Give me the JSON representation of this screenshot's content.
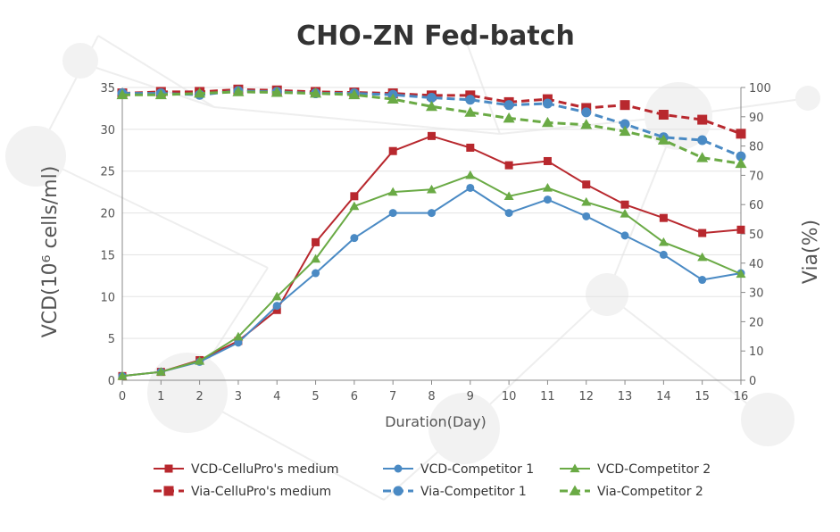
{
  "chart_data": {
    "type": "line",
    "title": "CHO-ZN Fed-batch",
    "xlabel": "Duration(Day)",
    "ylabel_left": "VCD(10⁶ cells/ml)",
    "ylabel_right": "Via(%)",
    "x": [
      0,
      1,
      2,
      3,
      4,
      5,
      6,
      7,
      8,
      9,
      10,
      11,
      12,
      13,
      14,
      15,
      16
    ],
    "ylim_left": [
      0,
      35
    ],
    "ylim_right": [
      0,
      100
    ],
    "left_ticks": [
      0,
      5,
      10,
      15,
      20,
      25,
      30,
      35
    ],
    "right_ticks": [
      0,
      10,
      20,
      30,
      40,
      50,
      60,
      70,
      80,
      90,
      100
    ],
    "legend_position": "bottom",
    "series": [
      {
        "name": "VCD-CelluPro's medium",
        "axis": "left",
        "color": "#b8282e",
        "marker": "square",
        "dashed": false,
        "values": [
          0.5,
          1.0,
          2.4,
          4.7,
          8.4,
          16.5,
          22.0,
          27.4,
          29.2,
          27.8,
          25.7,
          26.2,
          23.4,
          21.0,
          19.4,
          17.6,
          18.0
        ]
      },
      {
        "name": "VCD-Competitor 1",
        "axis": "left",
        "color": "#4a8ac4",
        "marker": "circle",
        "dashed": false,
        "values": [
          0.5,
          1.0,
          2.2,
          4.5,
          8.9,
          12.8,
          17.0,
          20.0,
          20.0,
          23.0,
          20.0,
          21.6,
          19.6,
          17.3,
          15.0,
          12.0,
          12.8
        ]
      },
      {
        "name": "VCD-Competitor 2",
        "axis": "left",
        "color": "#6aaa45",
        "marker": "triangle",
        "dashed": false,
        "values": [
          0.5,
          1.0,
          2.3,
          5.2,
          10.0,
          14.5,
          20.8,
          22.5,
          22.8,
          24.5,
          22.0,
          23.0,
          21.3,
          19.9,
          16.5,
          14.7,
          12.7
        ]
      },
      {
        "name": "Via-CelluPro's medium",
        "axis": "right",
        "color": "#b8282e",
        "marker": "square",
        "dashed": true,
        "values": [
          98.0,
          98.5,
          98.5,
          99.3,
          99.0,
          98.5,
          98.3,
          98.0,
          97.3,
          97.3,
          95.0,
          96.0,
          93.0,
          94.0,
          90.7,
          89.0,
          84.2
        ]
      },
      {
        "name": "Via-Competitor 1",
        "axis": "right",
        "color": "#4a8ac4",
        "marker": "circle",
        "dashed": true,
        "values": [
          98.0,
          98.0,
          97.5,
          98.8,
          98.5,
          98.0,
          98.0,
          97.5,
          96.5,
          95.8,
          94.0,
          94.5,
          91.5,
          87.5,
          83.0,
          82.0,
          76.5
        ]
      },
      {
        "name": "Via-Competitor 2",
        "axis": "right",
        "color": "#6aaa45",
        "marker": "triangle",
        "dashed": true,
        "values": [
          97.5,
          97.5,
          98.0,
          98.5,
          98.3,
          98.0,
          97.5,
          96.0,
          93.5,
          91.5,
          89.5,
          88.0,
          87.3,
          85.0,
          82.0,
          76.0,
          74.0
        ]
      }
    ]
  }
}
